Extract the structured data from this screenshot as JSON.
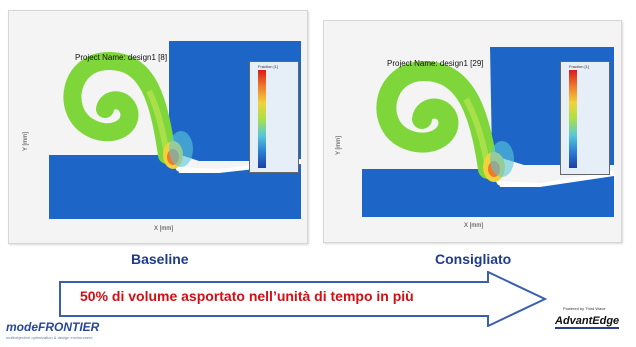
{
  "panels": {
    "left": {
      "project_title": "Project Name: design1 [8]",
      "y_axis": "Y [mm]",
      "x_axis": "X [mm]",
      "colorbar_title": "Fraction [1]",
      "caption": "Baseline"
    },
    "right": {
      "project_title": "Project Name: design1 [29]",
      "y_axis": "Y [mm]",
      "x_axis": "X [mm]",
      "colorbar_title": "Fraction [1]",
      "caption": "Consigliato"
    }
  },
  "banner": {
    "text": "50% di volume asportato nell’unità di tempo in più",
    "text_color": "#d20f15"
  },
  "logos": {
    "left_name": "modeFRONTIER",
    "left_tagline": "multiobjective optimization & design environment",
    "right_small": "Powered by Third Wave",
    "right_name": "AdvantEdge"
  },
  "colors": {
    "flow_blue": "#1d66c8",
    "chip_green": "#7fd63a",
    "caption_blue": "#1f3c8c"
  }
}
